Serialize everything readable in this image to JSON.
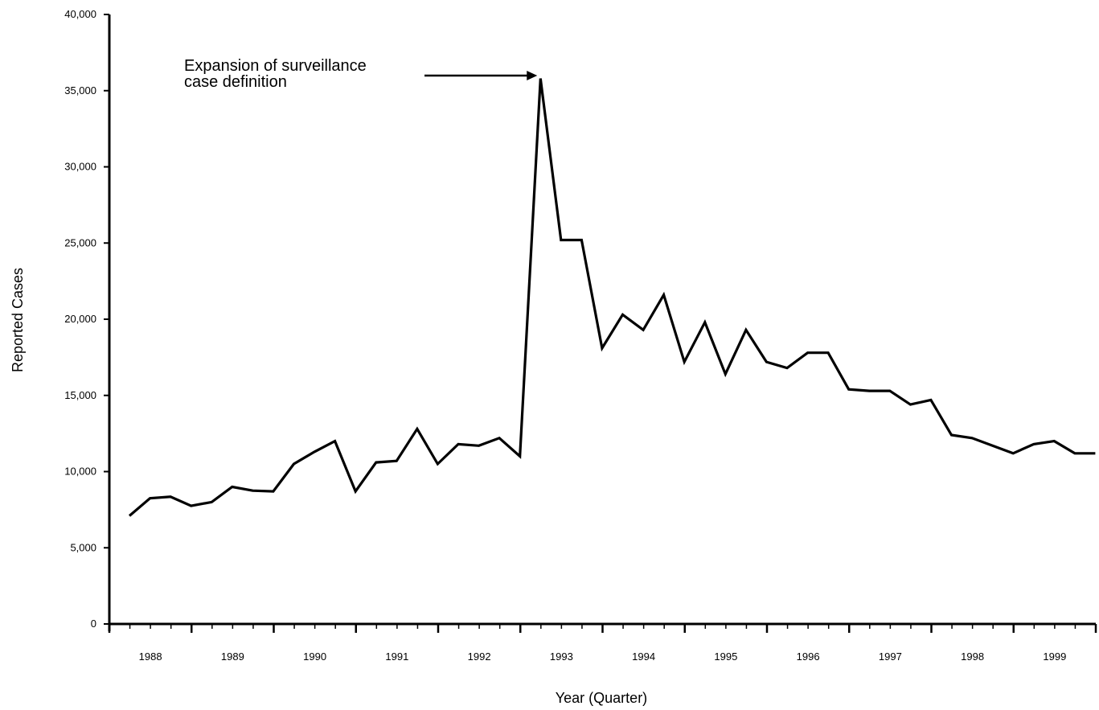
{
  "chart_data": {
    "type": "line",
    "title": "",
    "xlabel": "Year (Quarter)",
    "ylabel": "Reported Cases",
    "ylim": [
      0,
      40000
    ],
    "y_ticks": [
      0,
      5000,
      10000,
      15000,
      20000,
      25000,
      30000,
      35000,
      40000
    ],
    "y_tick_labels": [
      "0",
      "5,000",
      "10,000",
      "15,000",
      "20,000",
      "25,000",
      "30,000",
      "35,000",
      "40,000"
    ],
    "year_labels": [
      "1988",
      "1989",
      "1990",
      "1991",
      "1992",
      "1993",
      "1994",
      "1995",
      "1996",
      "1997",
      "1998",
      "1999"
    ],
    "quarters_per_year": 4,
    "grid": false,
    "series": [
      {
        "values": [
          7100,
          8250,
          8350,
          7750,
          8000,
          9000,
          8750,
          8700,
          10500,
          11300,
          12000,
          8700,
          10600,
          10700,
          12800,
          10500,
          11800,
          11700,
          12200,
          11000,
          35800,
          25200,
          25200,
          18100,
          20300,
          19300,
          21600,
          17200,
          19800,
          16400,
          19300,
          17200,
          16800,
          17800,
          17800,
          15400,
          15300,
          15300,
          14400,
          14700,
          12400,
          12200,
          11700,
          11200,
          11800,
          12000,
          11200,
          11200
        ]
      }
    ],
    "annotations": [
      {
        "lines": [
          "Expansion of surveillance",
          "case definition"
        ],
        "points_to_index": 20
      }
    ],
    "color": "#000000"
  }
}
